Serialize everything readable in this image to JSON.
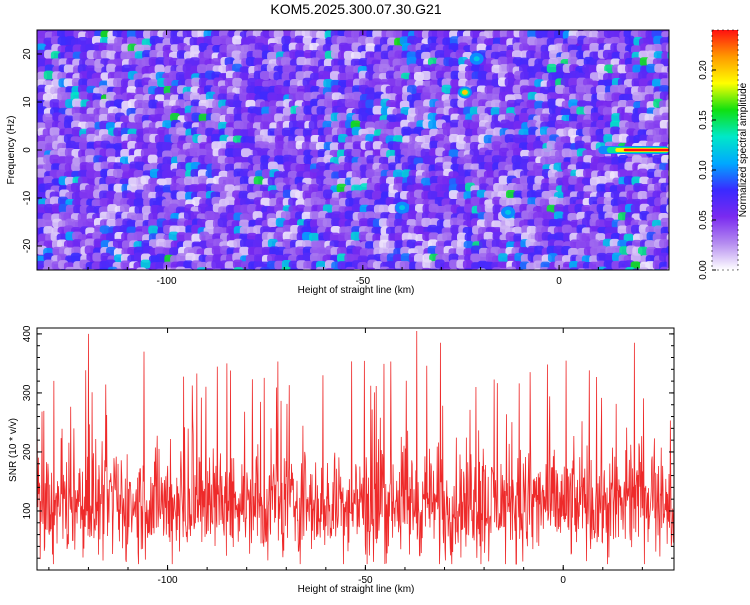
{
  "title": "KOM5.2025.300.07.30.G21",
  "colors": {
    "snr_line": "#ee2a2a",
    "background": "#ffffff"
  },
  "chart_data": [
    {
      "type": "heatmap",
      "name": "spectrogram",
      "xlabel": "Height of straight line (km)",
      "ylabel": "Frequency (Hz)",
      "xlim": [
        -133,
        28
      ],
      "ylim": [
        -25,
        25
      ],
      "xticks": [
        -100,
        -50,
        0
      ],
      "yticks": [
        -20,
        -10,
        0,
        10,
        20
      ],
      "colorbar": {
        "label": "Normalized spectral amplitude",
        "range": [
          0.0,
          0.24
        ],
        "ticks": [
          "0.00",
          "0.05",
          "0.10",
          "0.15",
          "0.20"
        ],
        "colormap": [
          "#ffffff",
          "#b58cf0",
          "#7a2af0",
          "#3a2aff",
          "#00a8ff",
          "#00e8c8",
          "#10e010",
          "#ffff00",
          "#ff9900",
          "#ff1010"
        ]
      },
      "features": [
        {
          "description": "strong narrowband signal near 0 Hz",
          "x_range": [
            10,
            28
          ],
          "freq": 0,
          "peak_amplitude": 0.24
        },
        {
          "x": -24,
          "freq": 12,
          "amplitude": 0.2
        },
        {
          "x": -21,
          "freq": 19,
          "amplitude": 0.12
        },
        {
          "x": -40,
          "freq": -12,
          "amplitude": 0.12
        },
        {
          "x": -13,
          "freq": -13,
          "amplitude": 0.12
        }
      ]
    },
    {
      "type": "line",
      "name": "snr",
      "xlabel": "Height of straight line (km)",
      "ylabel": "SNR (10 * v/v)",
      "xlim": [
        -133,
        28
      ],
      "ylim": [
        0,
        410
      ],
      "xticks": [
        -100,
        -50,
        0
      ],
      "yticks": [
        100,
        200,
        300,
        400
      ],
      "series": [
        {
          "name": "SNR",
          "description": "noisy trace, mean ~110, range ~10 to 405",
          "mean": 110,
          "min": 10,
          "max": 405,
          "peaks": [
            {
              "x": -120,
              "y": 400
            },
            {
              "x": -37,
              "y": 405
            },
            {
              "x": -106,
              "y": 370
            },
            {
              "x": -85,
              "y": 350
            },
            {
              "x": -31,
              "y": 385
            },
            {
              "x": 18,
              "y": 385
            }
          ]
        }
      ]
    }
  ]
}
